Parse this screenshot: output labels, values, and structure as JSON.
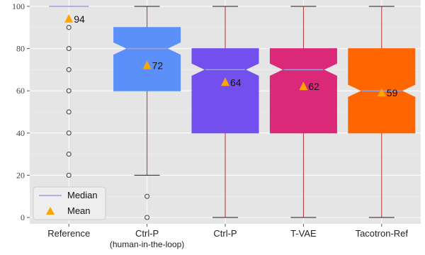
{
  "chart_data": {
    "type": "boxplot",
    "ylim": [
      -3,
      103
    ],
    "yticks": [
      0,
      20,
      40,
      60,
      80,
      100
    ],
    "grid": true,
    "legend": {
      "position": "bottom-left",
      "median_label": "Median",
      "mean_label": "Mean"
    },
    "colors": {
      "background": "#e5e5e5",
      "whisker": "#b03030",
      "median": "#9aa0e0",
      "mean_marker": "#ffa500",
      "outlier": "#555555"
    },
    "series": [
      {
        "label": "Reference",
        "sublabel": "",
        "color": "#5c1a5c",
        "min": 100,
        "q1": 100,
        "median": 100,
        "q3": 100,
        "max": 100,
        "notch_low": 100,
        "notch_high": 100,
        "mean": 94,
        "mean_label": "94",
        "outliers": [
          90,
          80,
          70,
          60,
          50,
          40,
          30,
          20,
          10
        ]
      },
      {
        "label": "Ctrl-P",
        "sublabel": "(human-in-the-loop)",
        "color": "#5b8ff9",
        "min": 20,
        "q1": 60,
        "median": 80,
        "q3": 90,
        "max": 100,
        "notch_low": 77,
        "notch_high": 83,
        "mean": 72,
        "mean_label": "72",
        "outliers": [
          10,
          0
        ]
      },
      {
        "label": "Ctrl-P",
        "sublabel": "",
        "color": "#7350ee",
        "min": 0,
        "q1": 40,
        "median": 70,
        "q3": 80,
        "max": 100,
        "notch_low": 67,
        "notch_high": 73,
        "mean": 64,
        "mean_label": "64",
        "outliers": []
      },
      {
        "label": "T-VAE",
        "sublabel": "",
        "color": "#dc2878",
        "min": 0,
        "q1": 40,
        "median": 70,
        "q3": 80,
        "max": 100,
        "notch_low": 67,
        "notch_high": 73,
        "mean": 62,
        "mean_label": "62",
        "outliers": []
      },
      {
        "label": "Tacotron-Ref",
        "sublabel": "",
        "color": "#ff6600",
        "min": 0,
        "q1": 40,
        "median": 60,
        "q3": 80,
        "max": 100,
        "notch_low": 57,
        "notch_high": 63,
        "mean": 59,
        "mean_label": "59",
        "outliers": []
      }
    ]
  }
}
